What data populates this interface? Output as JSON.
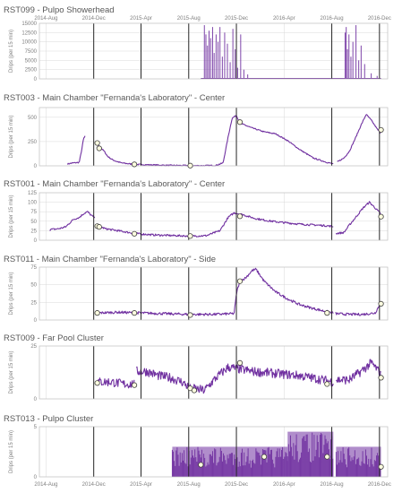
{
  "colors": {
    "series": "#7030a0",
    "marker_fill": "#ffffe0",
    "marker_stroke": "#404040",
    "event_line": "#262626",
    "grid": "#d9d9d9"
  },
  "x_ticks": [
    "2014-Aug",
    "2014-Dec",
    "2015-Apr",
    "2015-Aug",
    "2015-Dec",
    "2016-Apr",
    "2016-Aug",
    "2016-Dec"
  ],
  "event_lines": [
    "2014-Dec",
    "2015-Apr",
    "2015-Aug",
    "2015-Dec",
    "2016-Aug",
    "2016-Dec"
  ],
  "chart_data": [
    {
      "type": "line",
      "title": "RST099 - Pulpo Showerhead",
      "ylabel": "Drips (per 15 min)",
      "ylim": [
        0,
        15000
      ],
      "yticks": [
        0,
        2500,
        5000,
        7500,
        10000,
        12500,
        15000
      ],
      "show_top_xticks": true,
      "show_bottom_xticks": false,
      "style": "spikes",
      "spikes": [
        [
          "2015-09-10",
          14500
        ],
        [
          "2015-09-14",
          12000
        ],
        [
          "2015-09-18",
          9000
        ],
        [
          "2015-09-22",
          13000
        ],
        [
          "2015-09-26",
          11000
        ],
        [
          "2015-10-01",
          14000
        ],
        [
          "2015-10-05",
          7000
        ],
        [
          "2015-10-10",
          12000
        ],
        [
          "2015-10-15",
          10000
        ],
        [
          "2015-10-20",
          14000
        ],
        [
          "2015-10-26",
          6000
        ],
        [
          "2015-11-01",
          12500
        ],
        [
          "2015-11-08",
          9500
        ],
        [
          "2015-11-15",
          4500
        ],
        [
          "2015-11-22",
          13500
        ],
        [
          "2015-11-28",
          8000
        ],
        [
          "2015-12-04",
          3000
        ],
        [
          "2015-12-12",
          12000
        ],
        [
          "2015-12-20",
          2500
        ],
        [
          "2015-12-30",
          1200
        ],
        [
          "2016-09-04",
          12500
        ],
        [
          "2016-09-07",
          14000
        ],
        [
          "2016-09-10",
          8000
        ],
        [
          "2016-09-14",
          12000
        ],
        [
          "2016-09-19",
          6000
        ],
        [
          "2016-09-24",
          10000
        ],
        [
          "2016-10-02",
          14500
        ],
        [
          "2016-10-09",
          5000
        ],
        [
          "2016-10-15",
          9000
        ],
        [
          "2016-10-24",
          4000
        ],
        [
          "2016-11-10",
          1500
        ],
        [
          "2016-11-25",
          800
        ]
      ],
      "markers": []
    },
    {
      "type": "line",
      "title": "RST003 - Main Chamber \"Fernanda's Laboratory\" - Center",
      "ylabel": "Drips (per 15 min)",
      "ylim": [
        0,
        600
      ],
      "yticks": [
        0,
        250,
        500
      ],
      "show_top_xticks": false,
      "show_bottom_xticks": false,
      "noise": 6,
      "segments": [
        [
          [
            "2014-09-25",
            20
          ],
          [
            "2014-10-10",
            30
          ],
          [
            "2014-10-25",
            35
          ],
          [
            "2014-11-01",
            180
          ],
          [
            "2014-11-05",
            280
          ],
          [
            "2014-11-10",
            310
          ]
        ],
        [
          [
            "2014-12-10",
            230
          ],
          [
            "2014-12-15",
            200
          ],
          [
            "2014-12-20",
            180
          ],
          [
            "2014-12-28",
            150
          ],
          [
            "2015-01-05",
            100
          ],
          [
            "2015-01-15",
            70
          ],
          [
            "2015-01-25",
            50
          ],
          [
            "2015-02-10",
            30
          ],
          [
            "2015-03-15",
            15
          ],
          [
            "2015-04-25",
            10
          ],
          [
            "2015-06-10",
            5
          ],
          [
            "2015-08-05",
            3
          ]
        ],
        [
          [
            "2015-08-10",
            2
          ],
          [
            "2015-09-10",
            2
          ],
          [
            "2015-10-10",
            5
          ],
          [
            "2015-10-28",
            30
          ],
          [
            "2015-11-10",
            300
          ],
          [
            "2015-11-20",
            490
          ],
          [
            "2015-12-01",
            520
          ],
          [
            "2015-12-10",
            440
          ],
          [
            "2016-01-10",
            390
          ],
          [
            "2016-02-10",
            350
          ],
          [
            "2016-03-10",
            330
          ],
          [
            "2016-04-10",
            260
          ],
          [
            "2016-05-10",
            170
          ],
          [
            "2016-06-15",
            80
          ],
          [
            "2016-07-20",
            35
          ],
          [
            "2016-08-05",
            20
          ]
        ],
        [
          [
            "2016-08-15",
            40
          ],
          [
            "2016-09-01",
            80
          ],
          [
            "2016-09-15",
            150
          ],
          [
            "2016-10-01",
            290
          ],
          [
            "2016-10-15",
            420
          ],
          [
            "2016-10-28",
            530
          ],
          [
            "2016-11-10",
            470
          ],
          [
            "2016-11-25",
            380
          ],
          [
            "2016-12-05",
            330
          ]
        ]
      ],
      "markers": [
        [
          "2014-12-10",
          235
        ],
        [
          "2014-12-15",
          180
        ],
        [
          "2015-03-15",
          15
        ],
        [
          "2015-08-05",
          2
        ],
        [
          "2015-12-10",
          450
        ],
        [
          "2016-12-05",
          370
        ]
      ]
    },
    {
      "type": "line",
      "title": "RST001 - Main Chamber \"Fernanda's Laboratory\" - Center",
      "ylabel": "Drips (per 15 min)",
      "ylim": [
        0,
        125
      ],
      "yticks": [
        0,
        25,
        50,
        75,
        100,
        125
      ],
      "show_top_xticks": false,
      "show_bottom_xticks": false,
      "noise": 2.5,
      "segments": [
        [
          [
            "2014-08-10",
            28
          ],
          [
            "2014-09-01",
            30
          ],
          [
            "2014-09-20",
            35
          ],
          [
            "2014-10-10",
            55
          ],
          [
            "2014-10-25",
            60
          ],
          [
            "2014-11-05",
            70
          ],
          [
            "2014-11-15",
            75
          ],
          [
            "2014-11-25",
            65
          ],
          [
            "2014-12-05",
            58
          ]
        ],
        [
          [
            "2014-12-10",
            38
          ],
          [
            "2015-01-01",
            30
          ],
          [
            "2015-02-01",
            25
          ],
          [
            "2015-03-15",
            18
          ],
          [
            "2015-05-01",
            14
          ],
          [
            "2015-07-01",
            12
          ],
          [
            "2015-08-05",
            11
          ]
        ],
        [
          [
            "2015-08-10",
            11
          ],
          [
            "2015-09-15",
            12
          ],
          [
            "2015-10-20",
            25
          ],
          [
            "2015-11-10",
            60
          ],
          [
            "2015-11-25",
            72
          ],
          [
            "2015-12-15",
            68
          ],
          [
            "2016-01-15",
            58
          ],
          [
            "2016-02-15",
            52
          ],
          [
            "2016-03-15",
            48
          ],
          [
            "2016-04-15",
            45
          ],
          [
            "2016-05-15",
            42
          ],
          [
            "2016-06-20",
            40
          ],
          [
            "2016-07-20",
            38
          ],
          [
            "2016-08-05",
            36
          ]
        ],
        [
          [
            "2016-08-12",
            18
          ],
          [
            "2016-09-01",
            20
          ],
          [
            "2016-09-15",
            40
          ],
          [
            "2016-10-01",
            60
          ],
          [
            "2016-10-20",
            85
          ],
          [
            "2016-11-05",
            100
          ],
          [
            "2016-11-20",
            85
          ],
          [
            "2016-12-05",
            68
          ]
        ]
      ],
      "markers": [
        [
          "2014-12-10",
          37
        ],
        [
          "2014-12-15",
          35
        ],
        [
          "2015-03-15",
          17
        ],
        [
          "2015-08-05",
          11
        ],
        [
          "2015-12-10",
          63
        ],
        [
          "2016-12-05",
          62
        ]
      ]
    },
    {
      "type": "line",
      "title": "RST011 - Main Chamber \"Fernanda's Laboratory\" - Side",
      "ylabel": "Drips (per 15 min)",
      "ylim": [
        0,
        75
      ],
      "yticks": [
        0,
        25,
        50,
        75
      ],
      "show_top_xticks": false,
      "show_bottom_xticks": false,
      "noise": 1.8,
      "segments": [
        [
          [
            "2014-12-10",
            10
          ],
          [
            "2015-02-01",
            11
          ],
          [
            "2015-04-01",
            10
          ],
          [
            "2015-06-01",
            9
          ],
          [
            "2015-08-01",
            8
          ]
        ],
        [
          [
            "2015-08-10",
            8
          ],
          [
            "2015-10-01",
            8
          ],
          [
            "2015-11-25",
            9
          ],
          [
            "2015-12-02",
            40
          ],
          [
            "2015-12-10",
            55
          ],
          [
            "2015-12-25",
            60
          ],
          [
            "2016-01-10",
            70
          ],
          [
            "2016-01-20",
            72
          ],
          [
            "2016-02-10",
            55
          ],
          [
            "2016-03-10",
            40
          ],
          [
            "2016-04-10",
            30
          ],
          [
            "2016-05-10",
            22
          ],
          [
            "2016-06-10",
            17
          ],
          [
            "2016-07-10",
            13
          ],
          [
            "2016-08-05",
            10
          ]
        ],
        [
          [
            "2016-08-10",
            9
          ],
          [
            "2016-09-15",
            8
          ],
          [
            "2016-10-20",
            8
          ],
          [
            "2016-11-20",
            10
          ],
          [
            "2016-11-30",
            20
          ],
          [
            "2016-12-05",
            27
          ]
        ]
      ],
      "markers": [
        [
          "2014-12-10",
          10
        ],
        [
          "2015-03-15",
          10
        ],
        [
          "2015-08-05",
          7
        ],
        [
          "2015-12-10",
          55
        ],
        [
          "2016-07-20",
          10
        ],
        [
          "2016-12-05",
          23
        ]
      ]
    },
    {
      "type": "line",
      "title": "RST009 - Far Pool Cluster",
      "ylabel": "Drips (per 15 min)",
      "ylim": [
        0,
        25
      ],
      "yticks": [
        0,
        25
      ],
      "show_top_xticks": false,
      "show_bottom_xticks": false,
      "noise": 2.2,
      "segments": [
        [
          [
            "2014-12-10",
            8
          ],
          [
            "2015-01-15",
            8
          ],
          [
            "2015-02-15",
            7
          ],
          [
            "2015-03-15",
            7
          ]
        ],
        [
          [
            "2015-03-20",
            13
          ],
          [
            "2015-04-15",
            13
          ],
          [
            "2015-05-15",
            11
          ],
          [
            "2015-06-15",
            10
          ],
          [
            "2015-07-15",
            8
          ],
          [
            "2015-08-05",
            5
          ]
        ],
        [
          [
            "2015-08-10",
            5
          ],
          [
            "2015-09-10",
            4
          ],
          [
            "2015-10-10",
            10
          ],
          [
            "2015-11-10",
            15
          ],
          [
            "2015-12-10",
            14
          ],
          [
            "2016-01-10",
            13
          ],
          [
            "2016-03-10",
            12
          ],
          [
            "2016-05-10",
            11
          ],
          [
            "2016-07-10",
            9
          ],
          [
            "2016-08-05",
            8
          ]
        ],
        [
          [
            "2016-08-12",
            9
          ],
          [
            "2016-09-15",
            9
          ],
          [
            "2016-10-15",
            13
          ],
          [
            "2016-11-10",
            17
          ],
          [
            "2016-11-25",
            14
          ],
          [
            "2016-12-05",
            11
          ]
        ]
      ],
      "markers": [
        [
          "2014-12-10",
          7.5
        ],
        [
          "2015-03-15",
          6.5
        ],
        [
          "2015-08-05",
          5
        ],
        [
          "2015-08-15",
          4
        ],
        [
          "2015-12-10",
          17
        ],
        [
          "2016-07-20",
          7
        ],
        [
          "2016-12-05",
          10
        ]
      ]
    },
    {
      "type": "line",
      "title": "RST013 - Pulpo Cluster",
      "ylabel": "Drips (per 15 min)",
      "ylim": [
        0,
        5
      ],
      "yticks": [
        0,
        5
      ],
      "show_top_xticks": false,
      "show_bottom_xticks": true,
      "style": "band",
      "bands": [
        [
          [
            "2015-06-20",
            "2016-04-10"
          ],
          [
            0,
            3
          ]
        ],
        [
          [
            "2016-04-10",
            "2016-08-05"
          ],
          [
            0,
            4.5
          ]
        ],
        [
          [
            "2016-08-12",
            "2016-12-05"
          ],
          [
            0,
            3
          ]
        ]
      ],
      "markers": [
        [
          "2015-09-01",
          1.2
        ],
        [
          "2016-02-10",
          2
        ],
        [
          "2016-07-20",
          2
        ],
        [
          "2016-12-05",
          1
        ]
      ]
    }
  ]
}
